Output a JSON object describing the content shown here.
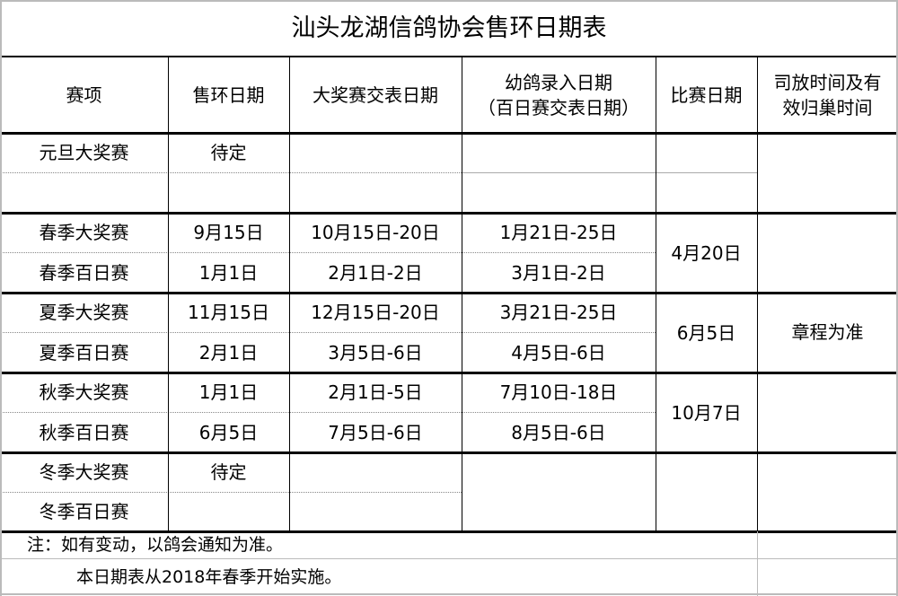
{
  "title": "汕头龙湖信鸽协会售环日期表",
  "headers": [
    "赛项",
    "售环日期",
    "大奖赛交表日期",
    "幼鸽录入日期\n（百日赛交表日期）",
    "比赛日期",
    "司放时间及有\n效归巢时间"
  ],
  "rows": [
    {
      "event": "元旦大奖赛",
      "ring_sale": "待定",
      "grand_submit": "",
      "young_entry": ""
    },
    {
      "event": "",
      "ring_sale": "",
      "grand_submit": "",
      "young_entry": ""
    },
    {
      "event": "春季大奖赛",
      "ring_sale": "9月15日",
      "grand_submit": "10月15日-20日",
      "young_entry": "1月21日-25日"
    },
    {
      "event": "春季百日赛",
      "ring_sale": "1月1日",
      "grand_submit": "2月1日-2日",
      "young_entry": "3月1日-2日"
    },
    {
      "event": "夏季大奖赛",
      "ring_sale": "11月15日",
      "grand_submit": "12月15日-20日",
      "young_entry": "3月21日-25日"
    },
    {
      "event": "夏季百日赛",
      "ring_sale": "2月1日",
      "grand_submit": "3月5日-6日",
      "young_entry": "4月5日-6日"
    },
    {
      "event": "秋季大奖赛",
      "ring_sale": "1月1日",
      "grand_submit": "2月1日-5日",
      "young_entry": "7月10日-18日"
    },
    {
      "event": "秋季百日赛",
      "ring_sale": "6月5日",
      "grand_submit": "7月5日-6日",
      "young_entry": "8月5日-6日"
    },
    {
      "event": "冬季大奖赛",
      "ring_sale": "待定",
      "grand_submit": "",
      "young_entry": ""
    },
    {
      "event": "冬季百日赛",
      "ring_sale": "",
      "grand_submit": "",
      "young_entry": ""
    }
  ],
  "race_dates": [
    "",
    "4月20日",
    "6月5日",
    "10月7日",
    ""
  ],
  "release_time": "章程为准",
  "notes": [
    "注：如有变动，以鸽会通知为准。",
    "本日期表从2018年春季开始实施。"
  ]
}
